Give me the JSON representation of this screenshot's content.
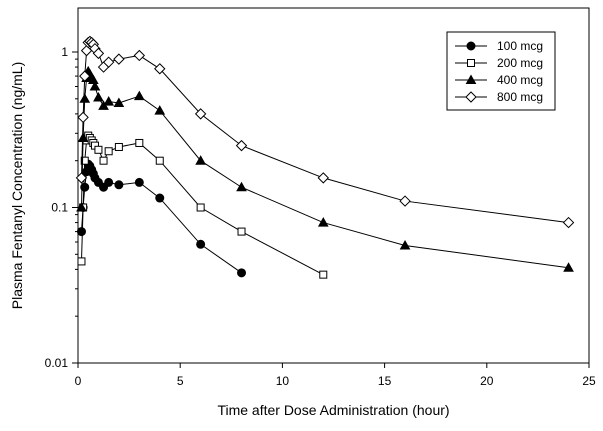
{
  "chart_data": {
    "type": "line",
    "title": "",
    "xlabel": "Time after Dose Administration (hour)",
    "ylabel": "Plasma Fentanyl Concentration (ng/mL)",
    "xlim": [
      0,
      25
    ],
    "ylim": [
      0.01,
      1.5
    ],
    "y_scale": "log",
    "grid": false,
    "legend_position": "top-right",
    "x_ticks": [
      0,
      5,
      10,
      15,
      20,
      25
    ],
    "x_tick_labels": [
      "0",
      "5",
      "10",
      "15",
      "20",
      "25"
    ],
    "y_ticks": [
      0.01,
      0.1,
      1
    ],
    "y_tick_labels": [
      "0.01",
      "0.1",
      "1"
    ],
    "series": [
      {
        "name": "100 mcg",
        "marker": "circle-filled",
        "x": [
          0.17,
          0.25,
          0.33,
          0.42,
          0.5,
          0.58,
          0.67,
          0.75,
          0.83,
          1,
          1.25,
          1.5,
          2,
          3,
          4,
          6,
          8
        ],
        "y": [
          0.07,
          0.1,
          0.135,
          0.17,
          0.19,
          0.185,
          0.175,
          0.165,
          0.155,
          0.145,
          0.135,
          0.145,
          0.14,
          0.145,
          0.115,
          0.058,
          0.038
        ]
      },
      {
        "name": "200 mcg",
        "marker": "square-open",
        "x": [
          0.17,
          0.25,
          0.33,
          0.42,
          0.5,
          0.58,
          0.67,
          0.75,
          0.83,
          1,
          1.25,
          1.5,
          2,
          3,
          4,
          6,
          8,
          12
        ],
        "y": [
          0.045,
          0.1,
          0.2,
          0.27,
          0.29,
          0.28,
          0.27,
          0.26,
          0.25,
          0.235,
          0.2,
          0.23,
          0.245,
          0.26,
          0.2,
          0.1,
          0.07,
          0.037
        ]
      },
      {
        "name": "400 mcg",
        "marker": "triangle-filled",
        "x": [
          0.17,
          0.25,
          0.33,
          0.42,
          0.5,
          0.58,
          0.67,
          0.75,
          0.83,
          1,
          1.25,
          1.5,
          2,
          3,
          4,
          6,
          8,
          12,
          16,
          24
        ],
        "y": [
          0.1,
          0.28,
          0.5,
          0.68,
          0.75,
          0.72,
          0.68,
          0.66,
          0.6,
          0.51,
          0.45,
          0.48,
          0.47,
          0.52,
          0.42,
          0.2,
          0.135,
          0.08,
          0.057,
          0.041
        ]
      },
      {
        "name": "800 mcg",
        "marker": "diamond-open",
        "x": [
          0.17,
          0.25,
          0.33,
          0.42,
          0.5,
          0.58,
          0.67,
          0.75,
          0.83,
          1,
          1.25,
          1.5,
          2,
          3,
          4,
          6,
          8,
          12,
          16,
          24
        ],
        "y": [
          0.155,
          0.38,
          0.7,
          1.02,
          1.15,
          1.17,
          1.15,
          1.12,
          1.05,
          0.98,
          0.8,
          0.86,
          0.9,
          0.95,
          0.78,
          0.4,
          0.25,
          0.155,
          0.11,
          0.08
        ]
      }
    ]
  }
}
